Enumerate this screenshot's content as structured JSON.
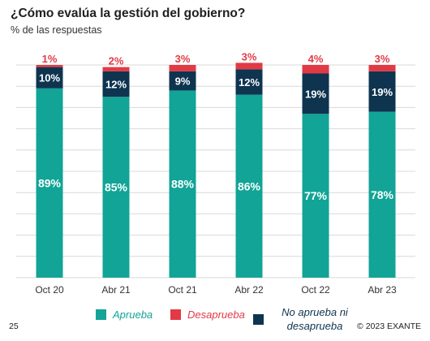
{
  "header": {
    "title": "¿Cómo evalúa la gestión del gobierno?",
    "subtitle": "% de las respuestas"
  },
  "footer": {
    "page_number": "25",
    "copyright": "© 2023 EXANTE"
  },
  "colors": {
    "aprueba": "#11a497",
    "desaprueba": "#e23a45",
    "no_aprueba_ni_desaprueba": "#0e3450",
    "gridline": "#d9d9d9"
  },
  "chart_data": {
    "type": "bar",
    "stacked": true,
    "title": "¿Cómo evalúa la gestión del gobierno?",
    "subtitle": "% de las respuestas",
    "categories": [
      "Oct 20",
      "Abr 21",
      "Oct 21",
      "Abr 22",
      "Oct 22",
      "Abr 23"
    ],
    "ylim": [
      0,
      100
    ],
    "grid": true,
    "legend_position": "bottom",
    "series": [
      {
        "name": "Aprueba",
        "color": "#11a497",
        "values": [
          89,
          85,
          88,
          86,
          77,
          78
        ],
        "labels": [
          "89%",
          "85%",
          "88%",
          "86%",
          "77%",
          "78%"
        ]
      },
      {
        "name": "No aprueba ni desaprueba",
        "color": "#0e3450",
        "values": [
          10,
          12,
          9,
          12,
          19,
          19
        ],
        "labels": [
          "10%",
          "12%",
          "9%",
          "12%",
          "19%",
          "19%"
        ]
      },
      {
        "name": "Desaprueba",
        "color": "#e23a45",
        "values": [
          1,
          2,
          3,
          3,
          4,
          3
        ],
        "labels": [
          "1%",
          "2%",
          "3%",
          "3%",
          "4%",
          "3%"
        ]
      }
    ]
  },
  "legend": {
    "aprueba": "Aprueba",
    "desaprueba": "Desaprueba",
    "no_aprueba_line1": "No aprueba ni",
    "no_aprueba_line2": "desaprueba"
  }
}
